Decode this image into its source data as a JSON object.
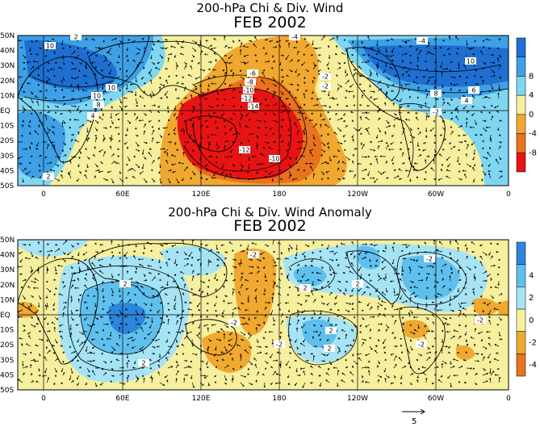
{
  "panels": [
    {
      "id": "total",
      "title_line1": "200-hPa Chi & Div. Wind",
      "title_line2": "FEB 2002",
      "colorbar": {
        "labels": [
          "8",
          "4",
          "0",
          "-4",
          "-8"
        ],
        "colors": [
          "#1f6fd1",
          "#3ea0e6",
          "#7fd6f0",
          "#f5ef9e",
          "#f0a830",
          "#e8721e",
          "#e81414"
        ]
      },
      "contour_labels": [
        "10",
        "10",
        "10",
        "8",
        "4",
        "2",
        "-4",
        "-2",
        "-6",
        "-8",
        "-10",
        "-12",
        "-14",
        "-12",
        "-10",
        "-2",
        "-4",
        "10",
        "8",
        "6",
        "4",
        "-2",
        "2"
      ]
    },
    {
      "id": "anomaly",
      "title_line1": "200-hPa Chi & Div. Wind Anomaly",
      "title_line2": "FEB 2002",
      "colorbar": {
        "labels": [
          "4",
          "2",
          "0",
          "-2",
          "-4"
        ],
        "colors": [
          "#2c86db",
          "#5fc0ee",
          "#a6e4f5",
          "#f5ef9e",
          "#f0a830",
          "#e8721e"
        ]
      },
      "contour_labels": [
        "2",
        "-2",
        "-2",
        "2",
        "-2",
        "2",
        "2",
        "-2",
        "2",
        "-2",
        "-2",
        "2"
      ]
    }
  ],
  "axes": {
    "lat_labels": [
      "50N",
      "40N",
      "30N",
      "20N",
      "10N",
      "EQ",
      "10S",
      "20S",
      "30S",
      "40S",
      "50S"
    ],
    "lon_labels": [
      "0",
      "60E",
      "120E",
      "180",
      "120W",
      "60W",
      "0"
    ]
  },
  "reference_vector": {
    "label": "5"
  },
  "colors": {
    "land_outline": "#000000",
    "grid": "#000000"
  }
}
